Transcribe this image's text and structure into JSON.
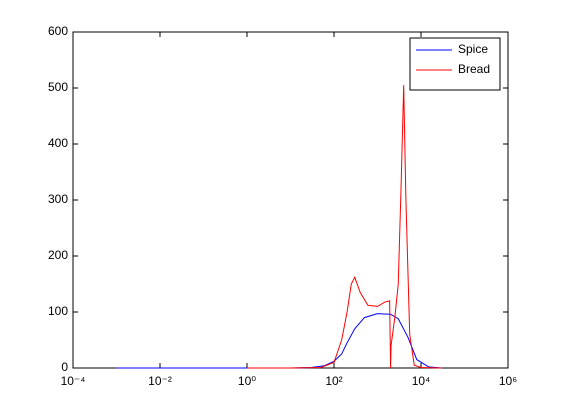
{
  "chart_data": {
    "type": "line",
    "x_scale": "log",
    "xlim": [
      0.0001,
      1000000
    ],
    "xticks": [
      {
        "value": 0.0001,
        "label": "10⁻⁴"
      },
      {
        "value": 0.01,
        "label": "10⁻²"
      },
      {
        "value": 1,
        "label": "10⁰"
      },
      {
        "value": 100,
        "label": "10²"
      },
      {
        "value": 10000,
        "label": "10⁴"
      },
      {
        "value": 1000000,
        "label": "10⁶"
      }
    ],
    "ylim": [
      0,
      600
    ],
    "yticks": [
      0,
      100,
      200,
      300,
      400,
      500,
      600
    ],
    "grid": false,
    "legend": "top-right",
    "series": [
      {
        "name": "Spice",
        "color": "#0000ff",
        "x": [
          0.001,
          0.01,
          0.1,
          1,
          10,
          30,
          60,
          100,
          150,
          200,
          300,
          500,
          1000,
          2000,
          3000,
          5000,
          8000,
          15000,
          30000
        ],
        "values": [
          0,
          0,
          0,
          0,
          0,
          1,
          4,
          12,
          25,
          45,
          70,
          90,
          97,
          96,
          88,
          55,
          15,
          2,
          0
        ]
      },
      {
        "name": "Bread",
        "color": "#ff0000",
        "x": [
          1,
          10,
          50,
          100,
          150,
          200,
          250,
          300,
          400,
          600,
          1000,
          1500,
          1900,
          2000,
          2050,
          2500,
          3000,
          3500,
          4000,
          4500,
          5500,
          7000,
          10000,
          30000
        ],
        "values": [
          0,
          0,
          1,
          10,
          50,
          100,
          150,
          162,
          135,
          112,
          110,
          118,
          120,
          0,
          40,
          90,
          150,
          330,
          505,
          300,
          60,
          5,
          1,
          0
        ]
      }
    ]
  }
}
